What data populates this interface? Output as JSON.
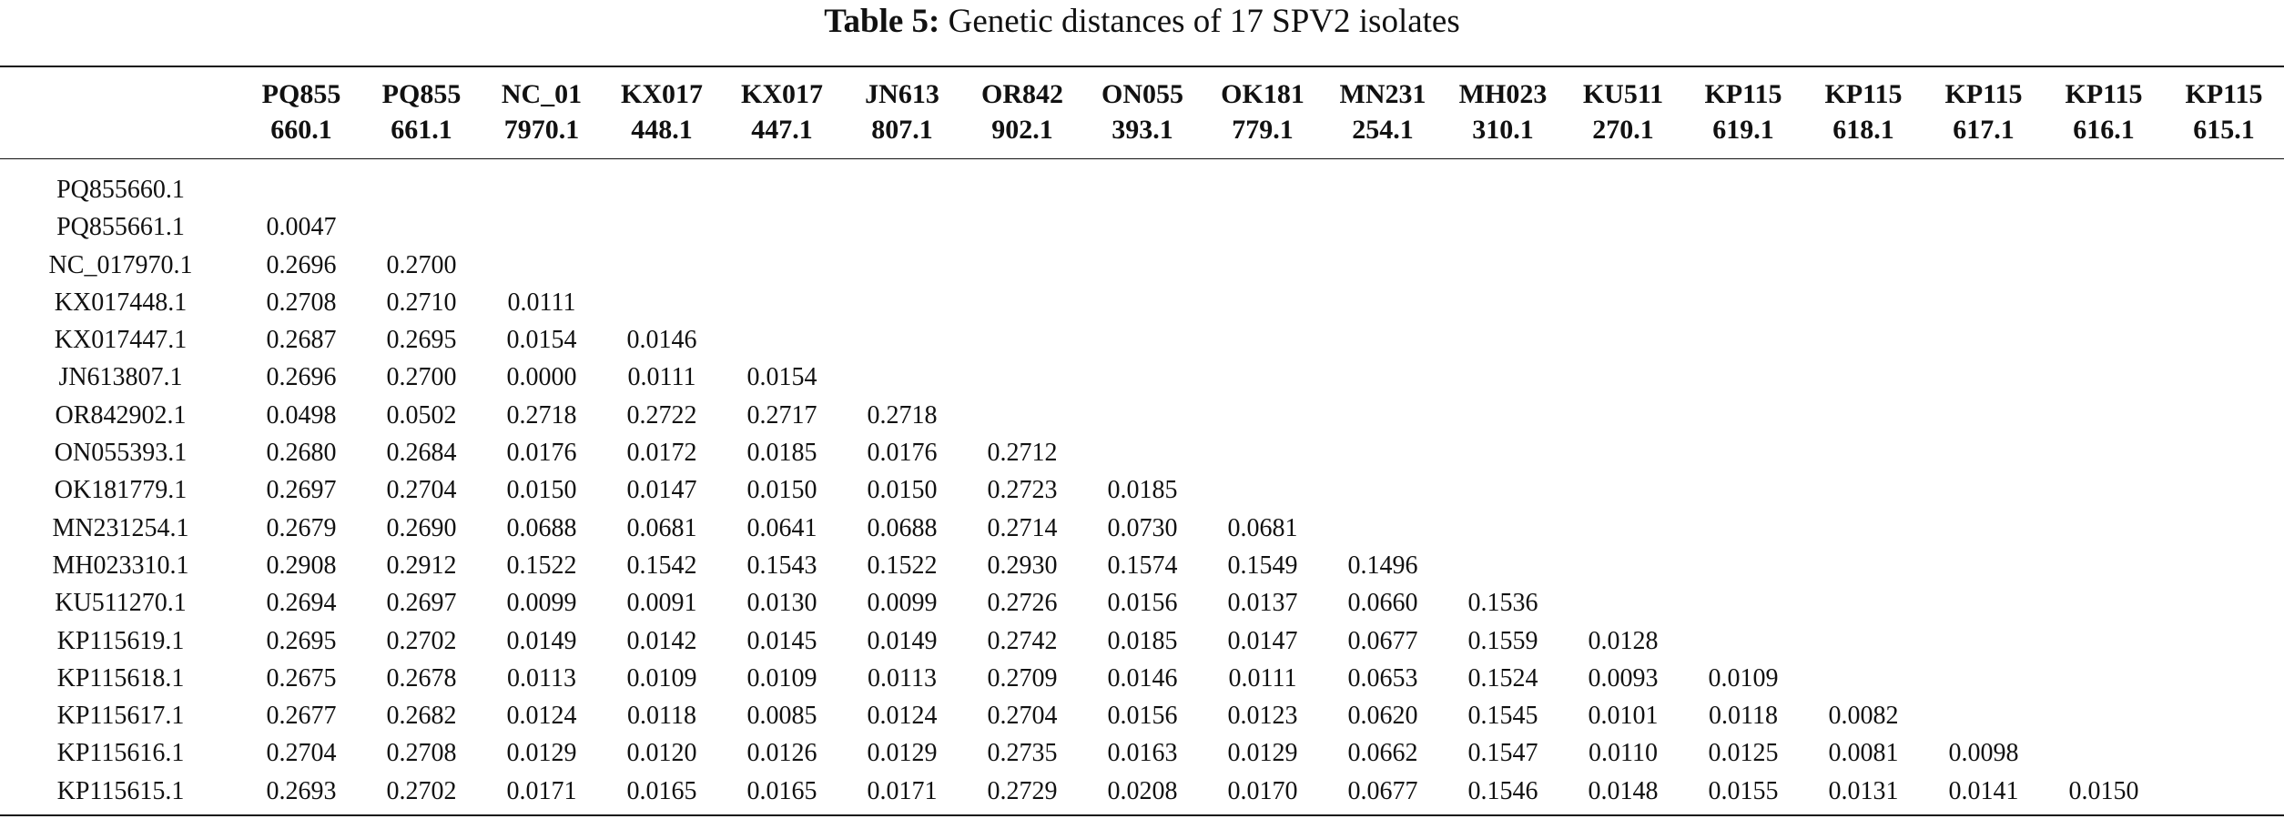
{
  "caption": {
    "label": "Table 5:",
    "text": "Genetic distances of 17 SPV2 isolates"
  },
  "table": {
    "column_headers": [
      {
        "line1": "PQ855",
        "line2": "660.1"
      },
      {
        "line1": "PQ855",
        "line2": "661.1"
      },
      {
        "line1": "NC_01",
        "line2": "7970.1"
      },
      {
        "line1": "KX017",
        "line2": "448.1"
      },
      {
        "line1": "KX017",
        "line2": "447.1"
      },
      {
        "line1": "JN613",
        "line2": "807.1"
      },
      {
        "line1": "OR842",
        "line2": "902.1"
      },
      {
        "line1": "ON055",
        "line2": "393.1"
      },
      {
        "line1": "OK181",
        "line2": "779.1"
      },
      {
        "line1": "MN231",
        "line2": "254.1"
      },
      {
        "line1": "MH023",
        "line2": "310.1"
      },
      {
        "line1": "KU511",
        "line2": "270.1"
      },
      {
        "line1": "KP115",
        "line2": "619.1"
      },
      {
        "line1": "KP115",
        "line2": "618.1"
      },
      {
        "line1": "KP115",
        "line2": "617.1"
      },
      {
        "line1": "KP115",
        "line2": "616.1"
      },
      {
        "line1": "KP115",
        "line2": "615.1"
      }
    ],
    "rows": [
      {
        "label": "PQ855660.1",
        "values": []
      },
      {
        "label": "PQ855661.1",
        "values": [
          "0.0047"
        ]
      },
      {
        "label": "NC_017970.1",
        "values": [
          "0.2696",
          "0.2700"
        ]
      },
      {
        "label": "KX017448.1",
        "values": [
          "0.2708",
          "0.2710",
          "0.0111"
        ]
      },
      {
        "label": "KX017447.1",
        "values": [
          "0.2687",
          "0.2695",
          "0.0154",
          "0.0146"
        ]
      },
      {
        "label": "JN613807.1",
        "values": [
          "0.2696",
          "0.2700",
          "0.0000",
          "0.0111",
          "0.0154"
        ]
      },
      {
        "label": "OR842902.1",
        "values": [
          "0.0498",
          "0.0502",
          "0.2718",
          "0.2722",
          "0.2717",
          "0.2718"
        ]
      },
      {
        "label": "ON055393.1",
        "values": [
          "0.2680",
          "0.2684",
          "0.0176",
          "0.0172",
          "0.0185",
          "0.0176",
          "0.2712"
        ]
      },
      {
        "label": "OK181779.1",
        "values": [
          "0.2697",
          "0.2704",
          "0.0150",
          "0.0147",
          "0.0150",
          "0.0150",
          "0.2723",
          "0.0185"
        ]
      },
      {
        "label": "MN231254.1",
        "values": [
          "0.2679",
          "0.2690",
          "0.0688",
          "0.0681",
          "0.0641",
          "0.0688",
          "0.2714",
          "0.0730",
          "0.0681"
        ]
      },
      {
        "label": "MH023310.1",
        "values": [
          "0.2908",
          "0.2912",
          "0.1522",
          "0.1542",
          "0.1543",
          "0.1522",
          "0.2930",
          "0.1574",
          "0.1549",
          "0.1496"
        ]
      },
      {
        "label": "KU511270.1",
        "values": [
          "0.2694",
          "0.2697",
          "0.0099",
          "0.0091",
          "0.0130",
          "0.0099",
          "0.2726",
          "0.0156",
          "0.0137",
          "0.0660",
          "0.1536"
        ]
      },
      {
        "label": "KP115619.1",
        "values": [
          "0.2695",
          "0.2702",
          "0.0149",
          "0.0142",
          "0.0145",
          "0.0149",
          "0.2742",
          "0.0185",
          "0.0147",
          "0.0677",
          "0.1559",
          "0.0128"
        ]
      },
      {
        "label": "KP115618.1",
        "values": [
          "0.2675",
          "0.2678",
          "0.0113",
          "0.0109",
          "0.0109",
          "0.0113",
          "0.2709",
          "0.0146",
          "0.0111",
          "0.0653",
          "0.1524",
          "0.0093",
          "0.0109"
        ]
      },
      {
        "label": "KP115617.1",
        "values": [
          "0.2677",
          "0.2682",
          "0.0124",
          "0.0118",
          "0.0085",
          "0.0124",
          "0.2704",
          "0.0156",
          "0.0123",
          "0.0620",
          "0.1545",
          "0.0101",
          "0.0118",
          "0.0082"
        ]
      },
      {
        "label": "KP115616.1",
        "values": [
          "0.2704",
          "0.2708",
          "0.0129",
          "0.0120",
          "0.0126",
          "0.0129",
          "0.2735",
          "0.0163",
          "0.0129",
          "0.0662",
          "0.1547",
          "0.0110",
          "0.0125",
          "0.0081",
          "0.0098"
        ]
      },
      {
        "label": "KP115615.1",
        "values": [
          "0.2693",
          "0.2702",
          "0.0171",
          "0.0165",
          "0.0165",
          "0.0171",
          "0.2729",
          "0.0208",
          "0.0170",
          "0.0677",
          "0.1546",
          "0.0148",
          "0.0155",
          "0.0131",
          "0.0141",
          "0.0150"
        ]
      }
    ]
  }
}
